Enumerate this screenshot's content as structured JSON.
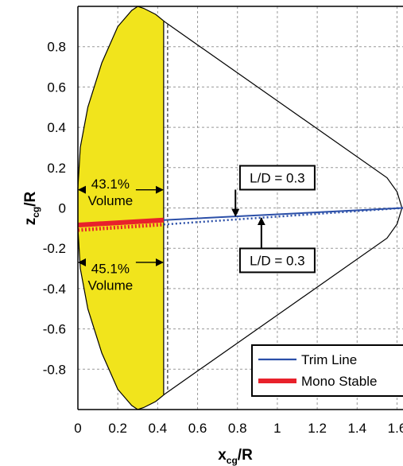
{
  "chart_data": {
    "type": "line",
    "xlabel": "x",
    "xlabel_sub": "cg",
    "xlabel_suffix": "/R",
    "ylabel": "z",
    "ylabel_sub": "cg",
    "ylabel_suffix": "/R",
    "xlim": [
      0,
      1.63
    ],
    "ylim": [
      -1.0,
      1.0
    ],
    "xticks": [
      0,
      0.2,
      0.4,
      0.6,
      0.8,
      1,
      1.2,
      1.4,
      1.6
    ],
    "xtick_labels": [
      "0",
      "0.2",
      "0.4",
      "0.6",
      "0.8",
      "1",
      "1.2",
      "1.4",
      "1.6"
    ],
    "yticks": [
      -0.8,
      -0.6,
      -0.4,
      -0.2,
      0,
      0.2,
      0.4,
      0.6,
      0.8
    ],
    "ytick_labels": [
      "-0.8",
      "-0.6",
      "-0.4",
      "-0.2",
      "0",
      "0.2",
      "0.4",
      "0.6",
      "0.8"
    ],
    "grid": true,
    "legend_position": "bottom-right",
    "colors": {
      "trim_line": "#2b4fa8",
      "mono_stable": "#e8212b",
      "fill": "#f1e41c",
      "grid": "#999999"
    },
    "outline": {
      "points": [
        [
          0,
          -0.1
        ],
        [
          0.012,
          -0.3
        ],
        [
          0.05,
          -0.5
        ],
        [
          0.12,
          -0.72
        ],
        [
          0.2,
          -0.9
        ],
        [
          0.27,
          -0.98
        ],
        [
          0.3,
          -1.0
        ],
        [
          0.33,
          -0.99
        ],
        [
          0.39,
          -0.96
        ],
        [
          0.44,
          -0.92
        ],
        [
          1.55,
          -0.15
        ],
        [
          1.6,
          -0.08
        ],
        [
          1.625,
          0
        ],
        [
          1.6,
          0.08
        ],
        [
          1.55,
          0.15
        ],
        [
          0.44,
          0.92
        ],
        [
          0.39,
          0.96
        ],
        [
          0.33,
          0.99
        ],
        [
          0.3,
          1.0
        ],
        [
          0.27,
          0.98
        ],
        [
          0.2,
          0.9
        ],
        [
          0.12,
          0.72
        ],
        [
          0.05,
          0.5
        ],
        [
          0.012,
          0.3
        ],
        [
          0,
          0.1
        ]
      ]
    },
    "filled_region_xmax": 0.43,
    "dashed_vertical_x": 0.45,
    "series": [
      {
        "name": "Trim Line",
        "style": "solid",
        "x": [
          0.43,
          1.63
        ],
        "y": [
          -0.06,
          0.0
        ]
      },
      {
        "name": "",
        "style": "dotted",
        "x": [
          0.43,
          1.63
        ],
        "y": [
          -0.082,
          0.0
        ]
      },
      {
        "name": "Mono Stable",
        "style": "solid-thick",
        "x": [
          0.0,
          0.43
        ],
        "y": [
          -0.085,
          -0.06
        ]
      },
      {
        "name": "",
        "style": "dotted-thick",
        "x": [
          0.0,
          0.43
        ],
        "y": [
          -0.11,
          -0.082
        ]
      }
    ],
    "annotations": [
      {
        "text": "43.1%",
        "text2": "Volume",
        "x": 0.155,
        "y": 0.12,
        "arrow_y": 0.09
      },
      {
        "text": "45.1%",
        "text2": "Volume",
        "x": 0.155,
        "y": -0.3,
        "arrow_y": -0.27
      },
      {
        "text": "L/D = 0.3",
        "x": 1.0,
        "y": 0.15,
        "arrow_to": [
          0.79,
          -0.04
        ]
      },
      {
        "text": "L/D = 0.3",
        "x": 1.0,
        "y": -0.26,
        "arrow_to": [
          0.92,
          -0.05
        ]
      }
    ],
    "legend": [
      {
        "label": "Trim Line",
        "color": "#2b4fa8"
      },
      {
        "label": "Mono Stable",
        "color": "#e8212b"
      }
    ]
  }
}
